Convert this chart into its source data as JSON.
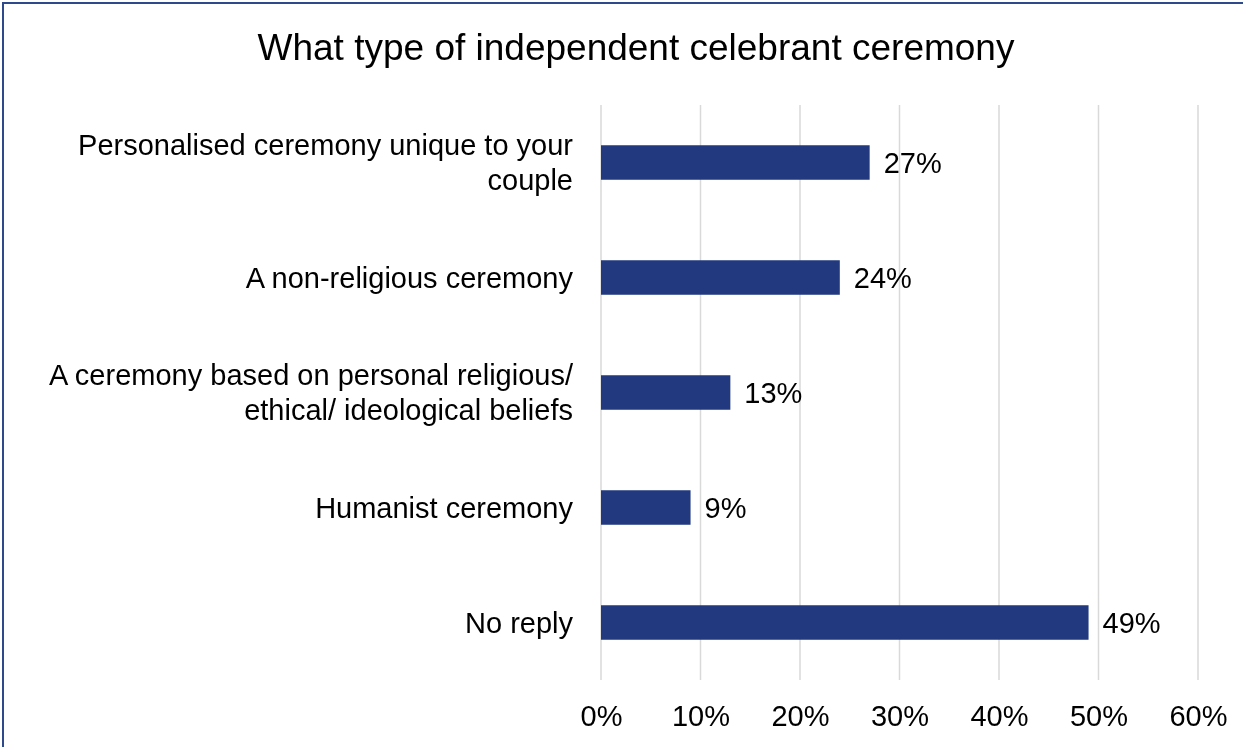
{
  "chart_data": {
    "type": "bar",
    "orientation": "horizontal",
    "title": "What type of independent celebrant ceremony",
    "categories": [
      "Personalised ceremony unique to your couple",
      "A non-religious ceremony",
      "A ceremony based on personal religious/ ethical/ ideological beliefs",
      "Humanist ceremony",
      "No reply"
    ],
    "values": [
      27,
      24,
      13,
      9,
      49
    ],
    "value_labels": [
      "27%",
      "24%",
      "13%",
      "9%",
      "49%"
    ],
    "color": "#22387f",
    "xlim": [
      0,
      60
    ],
    "xticks": [
      {
        "value": 0,
        "label": "0%"
      },
      {
        "value": 10,
        "label": "10%"
      },
      {
        "value": 20,
        "label": "20%"
      },
      {
        "value": 30,
        "label": "30%"
      },
      {
        "value": 40,
        "label": "40%"
      },
      {
        "value": 50,
        "label": "50%"
      },
      {
        "value": 60,
        "label": "60%"
      }
    ],
    "grid": "x"
  }
}
